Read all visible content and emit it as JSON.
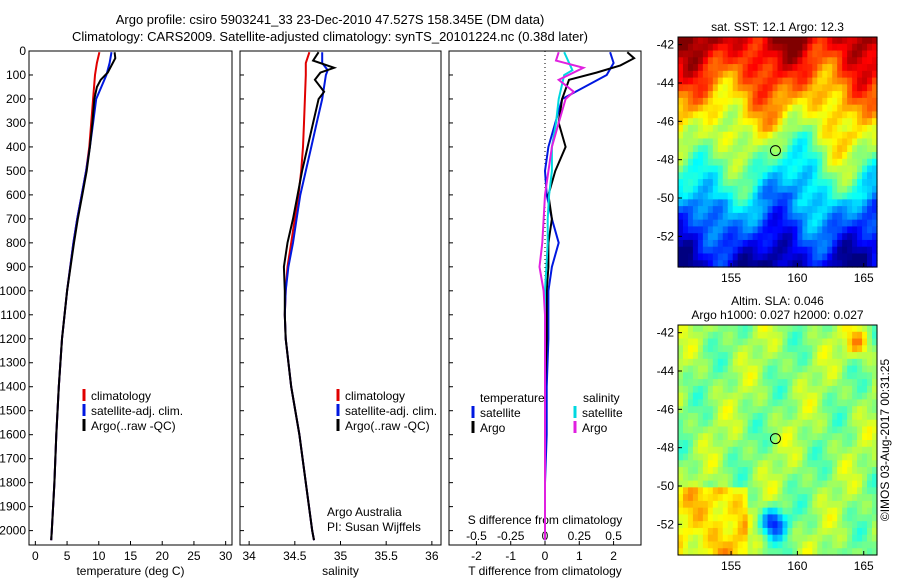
{
  "header": {
    "line1": "Argo profile: csiro 5903241_33 23-Dec-2010 47.527S 158.345E (DM data)",
    "line2": "Climatology: CARS2009. Satellite-adjusted climatology: synTS_20101224.nc (0.38d later)"
  },
  "colors": {
    "climatology": "#e00000",
    "satellite": "#0018e0",
    "argo": "#000000",
    "sat_salinity": "#00d8e0",
    "argo_salinity": "#e020e0"
  },
  "chart_data": [
    {
      "type": "line",
      "panel": "temperature",
      "xlabel": "temperature (deg C)",
      "ylabel": "",
      "xlim": [
        -1,
        31
      ],
      "ylim": [
        2060,
        0
      ],
      "xticks": [
        "0",
        "5",
        "10",
        "15",
        "20",
        "25",
        "30"
      ],
      "yticks": [
        "0",
        "100",
        "200",
        "300",
        "400",
        "500",
        "600",
        "700",
        "800",
        "900",
        "1000",
        "1100",
        "1200",
        "1300",
        "1400",
        "1500",
        "1600",
        "1700",
        "1800",
        "1900",
        "2000"
      ],
      "legend": [
        "climatology",
        "satellite-adj. clim.",
        "Argo(..raw -QC)"
      ],
      "series": [
        {
          "name": "climatology",
          "color": "#e00000",
          "depth": [
            5,
            50,
            100,
            200,
            300,
            400,
            500,
            600,
            700,
            800,
            1000,
            1200,
            1400,
            1600,
            1800,
            2000,
            2040
          ],
          "values": [
            10.1,
            9.7,
            9.4,
            9.1,
            8.8,
            8.5,
            8.0,
            7.3,
            6.6,
            6.0,
            5.0,
            4.2,
            3.7,
            3.3,
            3.0,
            2.6,
            2.5
          ]
        },
        {
          "name": "satellite-adj. clim.",
          "color": "#0018e0",
          "depth": [
            5,
            50,
            100,
            200,
            300,
            400,
            500,
            600,
            700,
            800,
            1000,
            1200,
            1400,
            1600,
            1800,
            2000,
            2040
          ],
          "values": [
            12.0,
            11.7,
            11.2,
            9.6,
            9.1,
            8.6,
            8.0,
            7.3,
            6.6,
            6.0,
            5.0,
            4.2,
            3.7,
            3.3,
            3.0,
            2.6,
            2.5
          ]
        },
        {
          "name": "Argo(..raw -QC)",
          "color": "#000000",
          "depth": [
            5,
            30,
            60,
            90,
            120,
            150,
            200,
            300,
            400,
            500,
            600,
            700,
            800,
            1000,
            1200,
            1400,
            1600,
            1800,
            2000,
            2040
          ],
          "values": [
            12.5,
            12.6,
            12.0,
            11.4,
            10.3,
            9.7,
            9.3,
            9.0,
            8.6,
            8.1,
            7.4,
            6.7,
            6.1,
            5.0,
            4.2,
            3.7,
            3.3,
            3.0,
            2.6,
            2.5
          ]
        }
      ]
    },
    {
      "type": "line",
      "panel": "salinity",
      "xlabel": "salinity",
      "xlim": [
        33.9,
        36.1
      ],
      "ylim": [
        2060,
        0
      ],
      "xticks": [
        "34",
        "34.5",
        "35",
        "35.5",
        "36"
      ],
      "legend": [
        "climatology",
        "satellite-adj. clim.",
        "Argo(..raw -QC)"
      ],
      "annotation": [
        "Argo Australia",
        "PI: Susan Wijffels"
      ],
      "series": [
        {
          "name": "climatology",
          "color": "#e00000",
          "depth": [
            5,
            50,
            100,
            200,
            300,
            400,
            500,
            600,
            700,
            800,
            900,
            1000,
            1100,
            1200,
            1400,
            1600,
            1800,
            2000,
            2040
          ],
          "values": [
            34.66,
            34.62,
            34.62,
            34.61,
            34.6,
            34.59,
            34.57,
            34.54,
            34.5,
            34.46,
            34.42,
            34.4,
            34.39,
            34.4,
            34.46,
            34.55,
            34.62,
            34.69,
            34.71
          ]
        },
        {
          "name": "satellite-adj. clim.",
          "color": "#0018e0",
          "depth": [
            5,
            50,
            80,
            100,
            200,
            300,
            400,
            500,
            600,
            700,
            800,
            900,
            1000,
            1100,
            1200,
            1400,
            1600,
            1800,
            2000,
            2040
          ],
          "values": [
            34.8,
            34.8,
            34.86,
            34.84,
            34.8,
            34.74,
            34.68,
            34.62,
            34.56,
            34.52,
            34.48,
            34.43,
            34.4,
            34.39,
            34.4,
            34.46,
            34.55,
            34.62,
            34.69,
            34.71
          ]
        },
        {
          "name": "Argo(..raw -QC)",
          "color": "#000000",
          "depth": [
            5,
            40,
            70,
            90,
            120,
            170,
            200,
            300,
            400,
            500,
            600,
            700,
            800,
            900,
            1000,
            1100,
            1200,
            1400,
            1600,
            1800,
            2000,
            2040
          ],
          "values": [
            34.76,
            34.7,
            34.93,
            34.78,
            34.72,
            34.82,
            34.76,
            34.7,
            34.64,
            34.58,
            34.53,
            34.48,
            34.42,
            34.38,
            34.39,
            34.39,
            34.4,
            34.46,
            34.55,
            34.62,
            34.69,
            34.71
          ]
        }
      ]
    },
    {
      "type": "line",
      "panel": "difference",
      "xlabel": "T difference from climatology",
      "xlabel_top": "S difference from climatology",
      "xlim": [
        -2.8,
        2.8
      ],
      "ylim": [
        2060,
        0
      ],
      "xticks": [
        "-2",
        "-1",
        "0",
        "1",
        "2"
      ],
      "xticks_top": [
        "-0.5",
        "-0.25",
        "0",
        "0.25",
        "0.5"
      ],
      "legend_titles": [
        "temperature",
        "salinity"
      ],
      "legend": [
        "satellite",
        "Argo",
        "satellite",
        "Argo"
      ],
      "series": [
        {
          "name": "satellite",
          "group": "temperature",
          "color": "#0018e0",
          "depth": [
            5,
            50,
            100,
            200,
            300,
            400,
            500,
            600,
            700,
            800,
            900,
            1000,
            1200,
            1400,
            1600,
            1800,
            2000,
            2040
          ],
          "values": [
            1.9,
            2.0,
            1.8,
            0.5,
            0.3,
            0.1,
            0.0,
            0.05,
            0.2,
            0.4,
            0.2,
            0.1,
            0.1,
            0.05,
            0.05,
            0.0,
            0.0,
            0.0
          ]
        },
        {
          "name": "Argo",
          "group": "temperature",
          "color": "#000000",
          "depth": [
            5,
            30,
            60,
            90,
            120,
            200,
            300,
            400,
            500,
            600,
            700,
            800,
            900,
            1000,
            1200,
            1400,
            1600,
            1800,
            2000,
            2040
          ],
          "values": [
            2.4,
            2.6,
            2.2,
            1.5,
            0.7,
            0.5,
            0.4,
            0.6,
            0.3,
            0.1,
            0.2,
            0.1,
            0.1,
            0.05,
            0.05,
            0.0,
            0.0,
            0.0,
            0.0,
            0.0
          ]
        },
        {
          "name": "satellite",
          "group": "salinity",
          "color": "#00d8e0",
          "depth": [
            5,
            80,
            100,
            200,
            300,
            400,
            500,
            600,
            700,
            800,
            900,
            1000,
            1200,
            1400,
            1600,
            1800,
            2000,
            2040
          ],
          "values": [
            0.14,
            0.2,
            0.14,
            0.1,
            0.08,
            0.05,
            0.05,
            0.03,
            0.02,
            0.02,
            0.01,
            0.0,
            0.0,
            0.0,
            0.0,
            0.0,
            0.0,
            0.0
          ]
        },
        {
          "name": "Argo",
          "group": "salinity",
          "color": "#e020e0",
          "depth": [
            5,
            40,
            70,
            120,
            170,
            200,
            300,
            400,
            600,
            800,
            900,
            1000,
            1100,
            1200,
            1400,
            1600,
            1800,
            2000,
            2040
          ],
          "values": [
            0.1,
            0.08,
            0.28,
            0.1,
            0.21,
            0.15,
            0.1,
            0.05,
            0.0,
            -0.02,
            -0.04,
            -0.01,
            0.0,
            0.0,
            0.0,
            0.0,
            0.0,
            0.0,
            0.0
          ]
        }
      ]
    },
    {
      "type": "heatmap",
      "panel": "sst",
      "title": "sat. SST: 12.1  Argo: 12.3",
      "xlim": [
        151,
        166
      ],
      "ylim": [
        -53.6,
        -41.6
      ],
      "xticks": [
        "155",
        "160",
        "165"
      ],
      "yticks": [
        "-42",
        "-44",
        "-46",
        "-48",
        "-50",
        "-52"
      ],
      "marker": {
        "lon": 158.345,
        "lat": -47.527
      }
    },
    {
      "type": "heatmap",
      "panel": "sla",
      "title": [
        "Altim. SLA: 0.046",
        "Argo h1000: 0.027 h2000: 0.027"
      ],
      "xlim": [
        151,
        166
      ],
      "ylim": [
        -53.6,
        -41.6
      ],
      "xticks": [
        "155",
        "160",
        "165"
      ],
      "yticks": [
        "-42",
        "-44",
        "-46",
        "-48",
        "-50",
        "-52"
      ],
      "marker": {
        "lon": 158.345,
        "lat": -47.527
      }
    }
  ],
  "side_stamp": "©IMOS 03-Aug-2017 00:31:25"
}
